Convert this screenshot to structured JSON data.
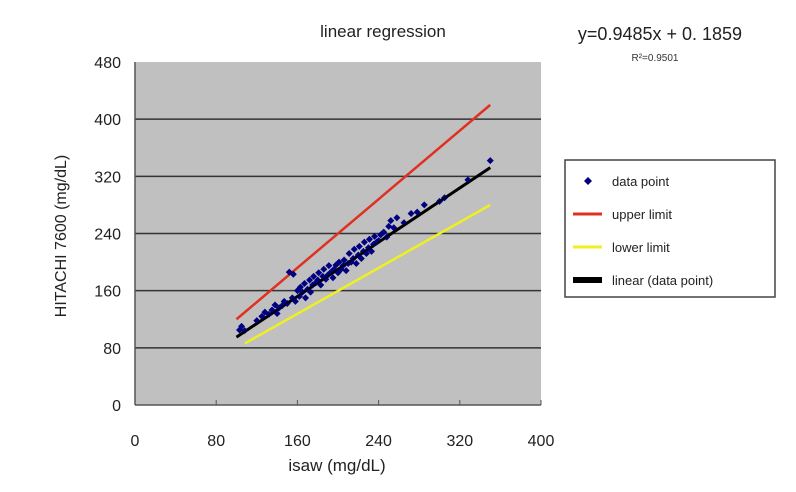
{
  "chart_data": {
    "type": "scatter",
    "title": "linear regression",
    "xlabel": "isaw (mg/dL)",
    "ylabel": "HITACHI 7600 (mg/dL)",
    "xlim": [
      0,
      400
    ],
    "ylim": [
      0,
      480
    ],
    "xticks": [
      0,
      80,
      160,
      240,
      320,
      400
    ],
    "yticks": [
      0,
      80,
      160,
      240,
      320,
      400,
      480
    ],
    "grid": "horizontal",
    "plot_background": "#c0c0c0",
    "legend_placement": "right",
    "equation": "y=0.9485x + 0. 1859",
    "r_squared": "R²=0.9501",
    "legend": [
      {
        "label": "data point",
        "color": "#000080",
        "marker": "diamond"
      },
      {
        "label": "upper limit",
        "color": "#e03020",
        "marker": "line"
      },
      {
        "label": "lower limit",
        "color": "#f0f020",
        "marker": "line"
      },
      {
        "label": "linear  (data point)",
        "color": "#000000",
        "marker": "thick-line"
      }
    ],
    "series": [
      {
        "name": "data point",
        "color": "#000080",
        "points": [
          [
            103,
            105
          ],
          [
            105,
            110
          ],
          [
            108,
            104
          ],
          [
            120,
            118
          ],
          [
            125,
            124
          ],
          [
            128,
            130
          ],
          [
            132,
            127
          ],
          [
            135,
            133
          ],
          [
            138,
            140
          ],
          [
            140,
            128
          ],
          [
            142,
            136
          ],
          [
            145,
            139
          ],
          [
            147,
            145
          ],
          [
            150,
            142
          ],
          [
            152,
            186
          ],
          [
            156,
            183
          ],
          [
            155,
            150
          ],
          [
            158,
            145
          ],
          [
            160,
            160
          ],
          [
            162,
            152
          ],
          [
            163,
            165
          ],
          [
            165,
            158
          ],
          [
            167,
            170
          ],
          [
            168,
            150
          ],
          [
            170,
            162
          ],
          [
            172,
            175
          ],
          [
            173,
            158
          ],
          [
            175,
            168
          ],
          [
            176,
            180
          ],
          [
            178,
            171
          ],
          [
            180,
            175
          ],
          [
            181,
            185
          ],
          [
            183,
            168
          ],
          [
            185,
            180
          ],
          [
            186,
            190
          ],
          [
            188,
            176
          ],
          [
            190,
            182
          ],
          [
            191,
            195
          ],
          [
            193,
            186
          ],
          [
            195,
            178
          ],
          [
            196,
            190
          ],
          [
            198,
            196
          ],
          [
            200,
            185
          ],
          [
            201,
            200
          ],
          [
            203,
            190
          ],
          [
            205,
            195
          ],
          [
            206,
            203
          ],
          [
            208,
            188
          ],
          [
            210,
            198
          ],
          [
            211,
            212
          ],
          [
            213,
            200
          ],
          [
            215,
            205
          ],
          [
            216,
            218
          ],
          [
            218,
            198
          ],
          [
            220,
            210
          ],
          [
            221,
            222
          ],
          [
            223,
            205
          ],
          [
            225,
            215
          ],
          [
            226,
            228
          ],
          [
            228,
            212
          ],
          [
            230,
            220
          ],
          [
            231,
            232
          ],
          [
            233,
            215
          ],
          [
            235,
            225
          ],
          [
            236,
            236
          ],
          [
            238,
            228
          ],
          [
            240,
            230
          ],
          [
            242,
            238
          ],
          [
            245,
            242
          ],
          [
            248,
            235
          ],
          [
            250,
            250
          ],
          [
            252,
            258
          ],
          [
            255,
            248
          ],
          [
            258,
            262
          ],
          [
            265,
            255
          ],
          [
            272,
            268
          ],
          [
            278,
            270
          ],
          [
            285,
            280
          ],
          [
            300,
            285
          ],
          [
            305,
            290
          ],
          [
            328,
            315
          ],
          [
            350,
            342
          ]
        ]
      },
      {
        "name": "upper limit",
        "color": "#e03020",
        "points": [
          [
            100,
            120
          ],
          [
            350,
            420
          ]
        ]
      },
      {
        "name": "lower limit",
        "color": "#f0f020",
        "points": [
          [
            108,
            86
          ],
          [
            350,
            280
          ]
        ]
      },
      {
        "name": "linear  (data point)",
        "color": "#000000",
        "points": [
          [
            100,
            95.04
          ],
          [
            350,
            332.16
          ]
        ]
      }
    ]
  }
}
